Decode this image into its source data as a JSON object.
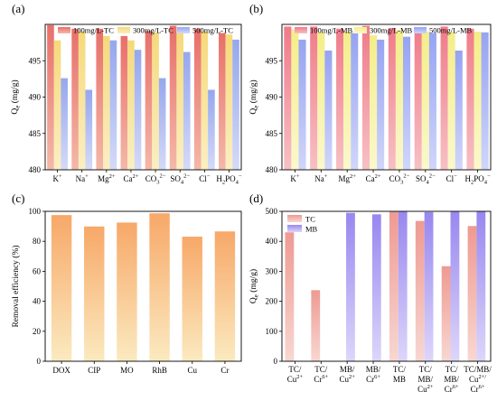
{
  "chart_data": [
    {
      "panel": "(a)",
      "type": "bar",
      "ylabel": "Qe (mg/g)",
      "ylim": [
        480,
        500
      ],
      "yticks": [
        480,
        485,
        490,
        495
      ],
      "categories": [
        {
          "base": "K",
          "sup": "+",
          "sub": ""
        },
        {
          "base": "Na",
          "sup": "+",
          "sub": ""
        },
        {
          "base": "Mg",
          "sup": "2+",
          "sub": ""
        },
        {
          "base": "Ca",
          "sup": "2+",
          "sub": ""
        },
        {
          "base": "CO",
          "sub": "3",
          "sup": "2−"
        },
        {
          "base": "SO",
          "sub": "4",
          "sup": "2−"
        },
        {
          "base": "Cl",
          "sup": "−",
          "sub": ""
        },
        {
          "base": "H",
          "sub": "2",
          "tail": "PO",
          "sub2": "4",
          "sup": "−"
        }
      ],
      "legend_position": "top",
      "series": [
        {
          "name": "100mg/L-TC",
          "values": [
            499.9,
            499.4,
            499.4,
            498.4,
            499.1,
            499.8,
            499.4,
            498.8
          ]
        },
        {
          "name": "300mg/L-TC",
          "values": [
            497.8,
            499.0,
            498.4,
            497.8,
            498.8,
            498.9,
            499.0,
            498.6
          ]
        },
        {
          "name": "500mg/L-TC",
          "values": [
            492.6,
            491.0,
            497.8,
            496.5,
            492.6,
            496.2,
            491.0,
            497.9
          ]
        }
      ]
    },
    {
      "panel": "(b)",
      "type": "bar",
      "ylabel": "Qe (mg/g)",
      "ylim": [
        480,
        500
      ],
      "yticks": [
        480,
        485,
        490,
        495
      ],
      "categories": [
        {
          "base": "K",
          "sup": "+",
          "sub": ""
        },
        {
          "base": "Na",
          "sup": "+",
          "sub": ""
        },
        {
          "base": "Mg",
          "sup": "2+",
          "sub": ""
        },
        {
          "base": "Ca",
          "sup": "2+",
          "sub": ""
        },
        {
          "base": "CO",
          "sub": "3",
          "sup": "2−"
        },
        {
          "base": "SO",
          "sub": "4",
          "sup": "2−"
        },
        {
          "base": "Cl",
          "sup": "−",
          "sub": ""
        },
        {
          "base": "H",
          "sub": "2",
          "tail": "PO",
          "sub2": "4",
          "sup": "−"
        }
      ],
      "legend_position": "top",
      "series": [
        {
          "name": "100mg/L-MB",
          "values": [
            499.7,
            499.7,
            499.4,
            499.8,
            499.5,
            499.6,
            499.7,
            499.4
          ]
        },
        {
          "name": "300mg/L-MB",
          "values": [
            499.3,
            498.9,
            499.0,
            498.5,
            499.2,
            499.0,
            498.9,
            499.0
          ]
        },
        {
          "name": "500mg/L-MB",
          "values": [
            497.9,
            496.4,
            498.8,
            497.9,
            498.3,
            498.8,
            496.4,
            498.9
          ]
        }
      ]
    },
    {
      "panel": "(c)",
      "type": "bar",
      "ylabel": "Removal efficiency (%)",
      "ylim": [
        0,
        100
      ],
      "yticks": [
        0,
        20,
        40,
        60,
        80,
        100
      ],
      "categories": [
        {
          "base": "DOX",
          "sup": "",
          "sub": ""
        },
        {
          "base": "CIP",
          "sup": "",
          "sub": ""
        },
        {
          "base": "MO",
          "sup": "",
          "sub": ""
        },
        {
          "base": "RhB",
          "sup": "",
          "sub": ""
        },
        {
          "base": "Cu",
          "sup": "",
          "sub": ""
        },
        {
          "base": "Cr",
          "sup": "",
          "sub": ""
        }
      ],
      "series": [
        {
          "name": "",
          "values": [
            97.5,
            89.9,
            92.5,
            98.7,
            83.1,
            86.6
          ]
        }
      ]
    },
    {
      "panel": "(d)",
      "type": "bar",
      "ylabel": "Qe (mg/g)",
      "ylim": [
        0,
        500
      ],
      "yticks": [
        0,
        100,
        200,
        300,
        400,
        500
      ],
      "categories": [
        {
          "lines": [
            {
              "base": "TC/"
            },
            {
              "base": "Cu",
              "sup": "2+"
            }
          ]
        },
        {
          "lines": [
            {
              "base": "TC/"
            },
            {
              "base": "Cr",
              "sup": "6+"
            }
          ]
        },
        {
          "lines": [
            {
              "base": "MB/"
            },
            {
              "base": "Cu",
              "sup": "2+"
            }
          ]
        },
        {
          "lines": [
            {
              "base": "MB/"
            },
            {
              "base": "Cr",
              "sup": "6+"
            }
          ]
        },
        {
          "lines": [
            {
              "base": "TC/"
            },
            {
              "base": "MB"
            }
          ]
        },
        {
          "lines": [
            {
              "base": "TC/"
            },
            {
              "base": "MB/"
            },
            {
              "base": "Cu",
              "sup": "2+"
            }
          ]
        },
        {
          "lines": [
            {
              "base": "TC/"
            },
            {
              "base": "MB/"
            },
            {
              "base": "Cr",
              "sup": "6+"
            }
          ]
        },
        {
          "lines": [
            {
              "base": "TC/MB/"
            },
            {
              "base": "Cu",
              "sup": "2+/"
            },
            {
              "base": "Cr",
              "sup": "6+"
            }
          ]
        }
      ],
      "legend_position": "top-left",
      "series": [
        {
          "name": "TC",
          "values": [
            430,
            237,
            null,
            null,
            499.5,
            468,
            317,
            451
          ]
        },
        {
          "name": "MB",
          "values": [
            null,
            null,
            495,
            490,
            499.5,
            497.5,
            499.5,
            499.5
          ]
        }
      ]
    }
  ],
  "colors": {
    "tc_series": [
      "#e87a72",
      "#f5d77a",
      "#9fb0ee"
    ],
    "mb_series": [
      "#f07b8a",
      "#f6f08e",
      "#9aa6f2"
    ],
    "panel_c_top": "#f7a868",
    "panel_c_bottom": "#fbeac0",
    "tc_d": "#ee9f97",
    "mb_d": "#9c8cf0"
  }
}
